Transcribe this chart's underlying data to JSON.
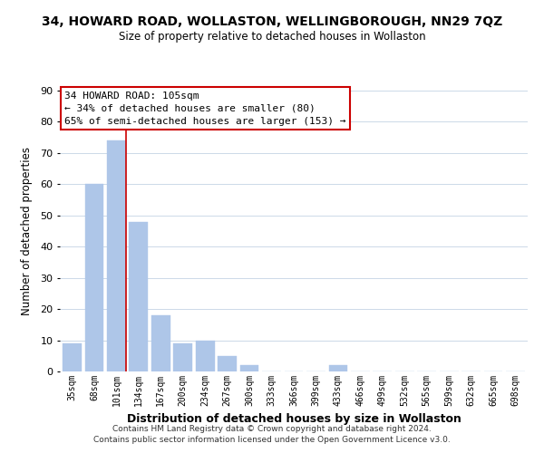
{
  "title": "34, HOWARD ROAD, WOLLASTON, WELLINGBOROUGH, NN29 7QZ",
  "subtitle": "Size of property relative to detached houses in Wollaston",
  "xlabel": "Distribution of detached houses by size in Wollaston",
  "ylabel": "Number of detached properties",
  "bar_labels": [
    "35sqm",
    "68sqm",
    "101sqm",
    "134sqm",
    "167sqm",
    "200sqm",
    "234sqm",
    "267sqm",
    "300sqm",
    "333sqm",
    "366sqm",
    "399sqm",
    "433sqm",
    "466sqm",
    "499sqm",
    "532sqm",
    "565sqm",
    "599sqm",
    "632sqm",
    "665sqm",
    "698sqm"
  ],
  "bar_values": [
    9,
    60,
    74,
    48,
    18,
    9,
    10,
    5,
    2,
    0,
    0,
    0,
    2,
    0,
    0,
    0,
    0,
    0,
    0,
    0,
    0
  ],
  "bar_color": "#aec6e8",
  "bar_edge_color": "#aec6e8",
  "ylim": [
    0,
    90
  ],
  "yticks": [
    0,
    10,
    20,
    30,
    40,
    50,
    60,
    70,
    80,
    90
  ],
  "property_line_index": 2,
  "property_line_color": "#cc0000",
  "box_text_line1": "34 HOWARD ROAD: 105sqm",
  "box_text_line2": "← 34% of detached houses are smaller (80)",
  "box_text_line3": "65% of semi-detached houses are larger (153) →",
  "footer1": "Contains HM Land Registry data © Crown copyright and database right 2024.",
  "footer2": "Contains public sector information licensed under the Open Government Licence v3.0.",
  "background_color": "#ffffff",
  "grid_color": "#ccd9e8"
}
